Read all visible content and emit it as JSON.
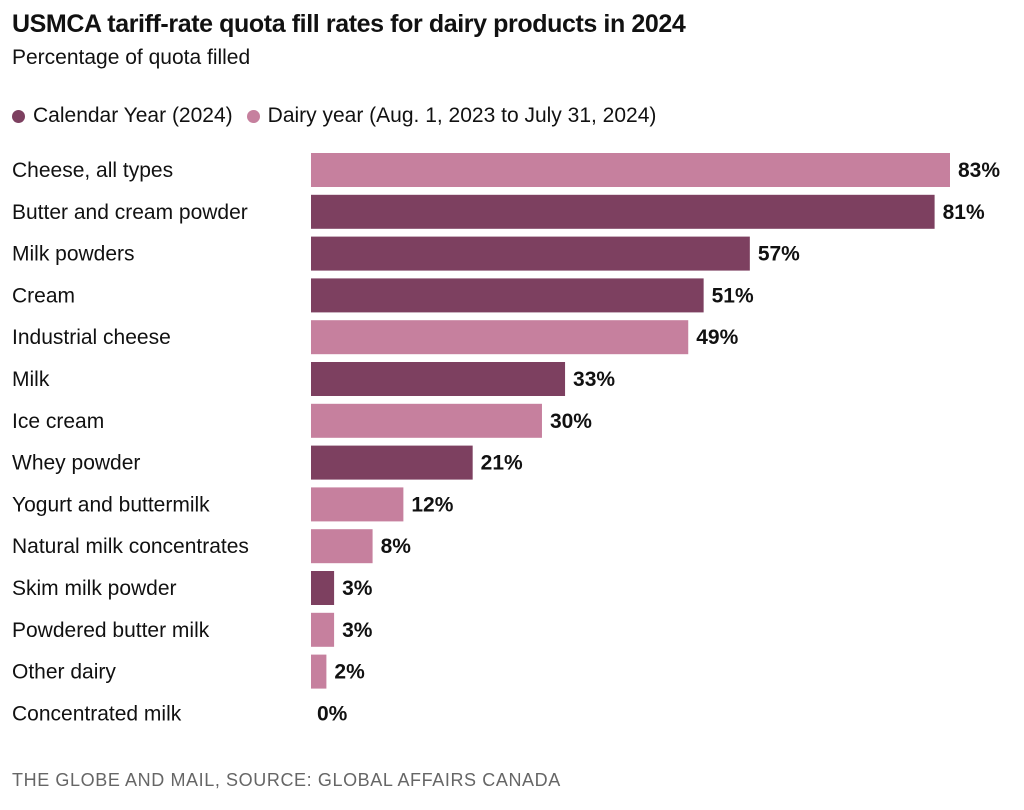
{
  "chart_data": {
    "type": "bar",
    "orientation": "horizontal",
    "title": "USMCA tariff-rate quota fill rates for dairy products in 2024",
    "subtitle": "Percentage of quota filled",
    "legend": [
      {
        "name": "Calendar Year (2024)",
        "color": "#7d4060"
      },
      {
        "name": "Dairy year (Aug. 1, 2023 to July 31, 2024)",
        "color": "#c6809e"
      }
    ],
    "legend_placement": "top-left",
    "grid": false,
    "xlim": [
      0,
      83
    ],
    "unit": "%",
    "categories": [
      "Cheese, all types",
      "Butter and cream powder",
      "Milk powders",
      "Cream",
      "Industrial cheese",
      "Milk",
      "Ice cream",
      "Whey powder",
      "Yogurt and buttermilk",
      "Natural milk concentrates",
      "Skim milk powder",
      "Powdered butter milk",
      "Other dairy",
      "Concentrated milk"
    ],
    "values": [
      83,
      81,
      57,
      51,
      49,
      33,
      30,
      21,
      12,
      8,
      3,
      3,
      2,
      0
    ],
    "value_labels": [
      "83%",
      "81%",
      "57%",
      "51%",
      "49%",
      "33%",
      "30%",
      "21%",
      "12%",
      "8%",
      "3%",
      "3%",
      "2%",
      "0%"
    ],
    "series_index": [
      1,
      0,
      0,
      0,
      1,
      0,
      1,
      0,
      1,
      1,
      0,
      1,
      1,
      1
    ]
  },
  "source": "THE GLOBE AND MAIL, SOURCE: GLOBAL AFFAIRS CANADA"
}
